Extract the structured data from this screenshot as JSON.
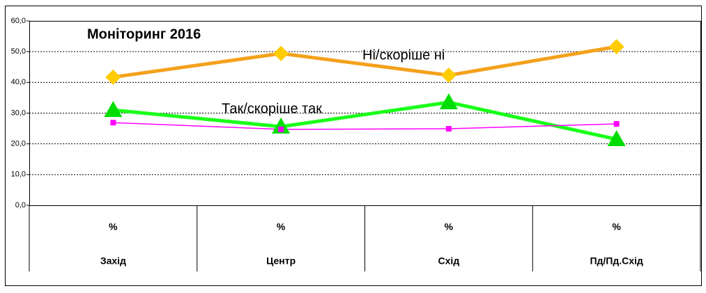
{
  "chart_data": {
    "type": "line",
    "title": "Моніторинг 2016",
    "categories": [
      "Захід",
      "Центр",
      "Схід",
      "Пд/Пд.Схід"
    ],
    "category_units": [
      "%",
      "%",
      "%",
      "%"
    ],
    "series": [
      {
        "name": "Ні/скоріше ні",
        "color": "#f5a11c",
        "marker_color": "#ffcc00",
        "marker": "diamond",
        "values": [
          41.7,
          49.4,
          42.3,
          51.6
        ]
      },
      {
        "name": "Так/скоріше так",
        "color": "#1aff1a",
        "marker_color": "#00dd00",
        "marker": "triangle",
        "values": [
          31.0,
          25.6,
          33.5,
          21.5
        ]
      },
      {
        "color": "#ff00ff",
        "marker_color": "#ff00ff",
        "marker": "square",
        "values": [
          26.9,
          24.7,
          24.9,
          26.5
        ]
      }
    ],
    "ylim": [
      0,
      60
    ],
    "yticks": [
      {
        "value": 0,
        "label": "0,0"
      },
      {
        "value": 10,
        "label": "10,0"
      },
      {
        "value": 20,
        "label": "20,0"
      },
      {
        "value": 30,
        "label": "30,0"
      },
      {
        "value": 40,
        "label": "40,0"
      },
      {
        "value": 50,
        "label": "50,0"
      },
      {
        "value": 60,
        "label": "60,0"
      }
    ],
    "grid": true
  }
}
